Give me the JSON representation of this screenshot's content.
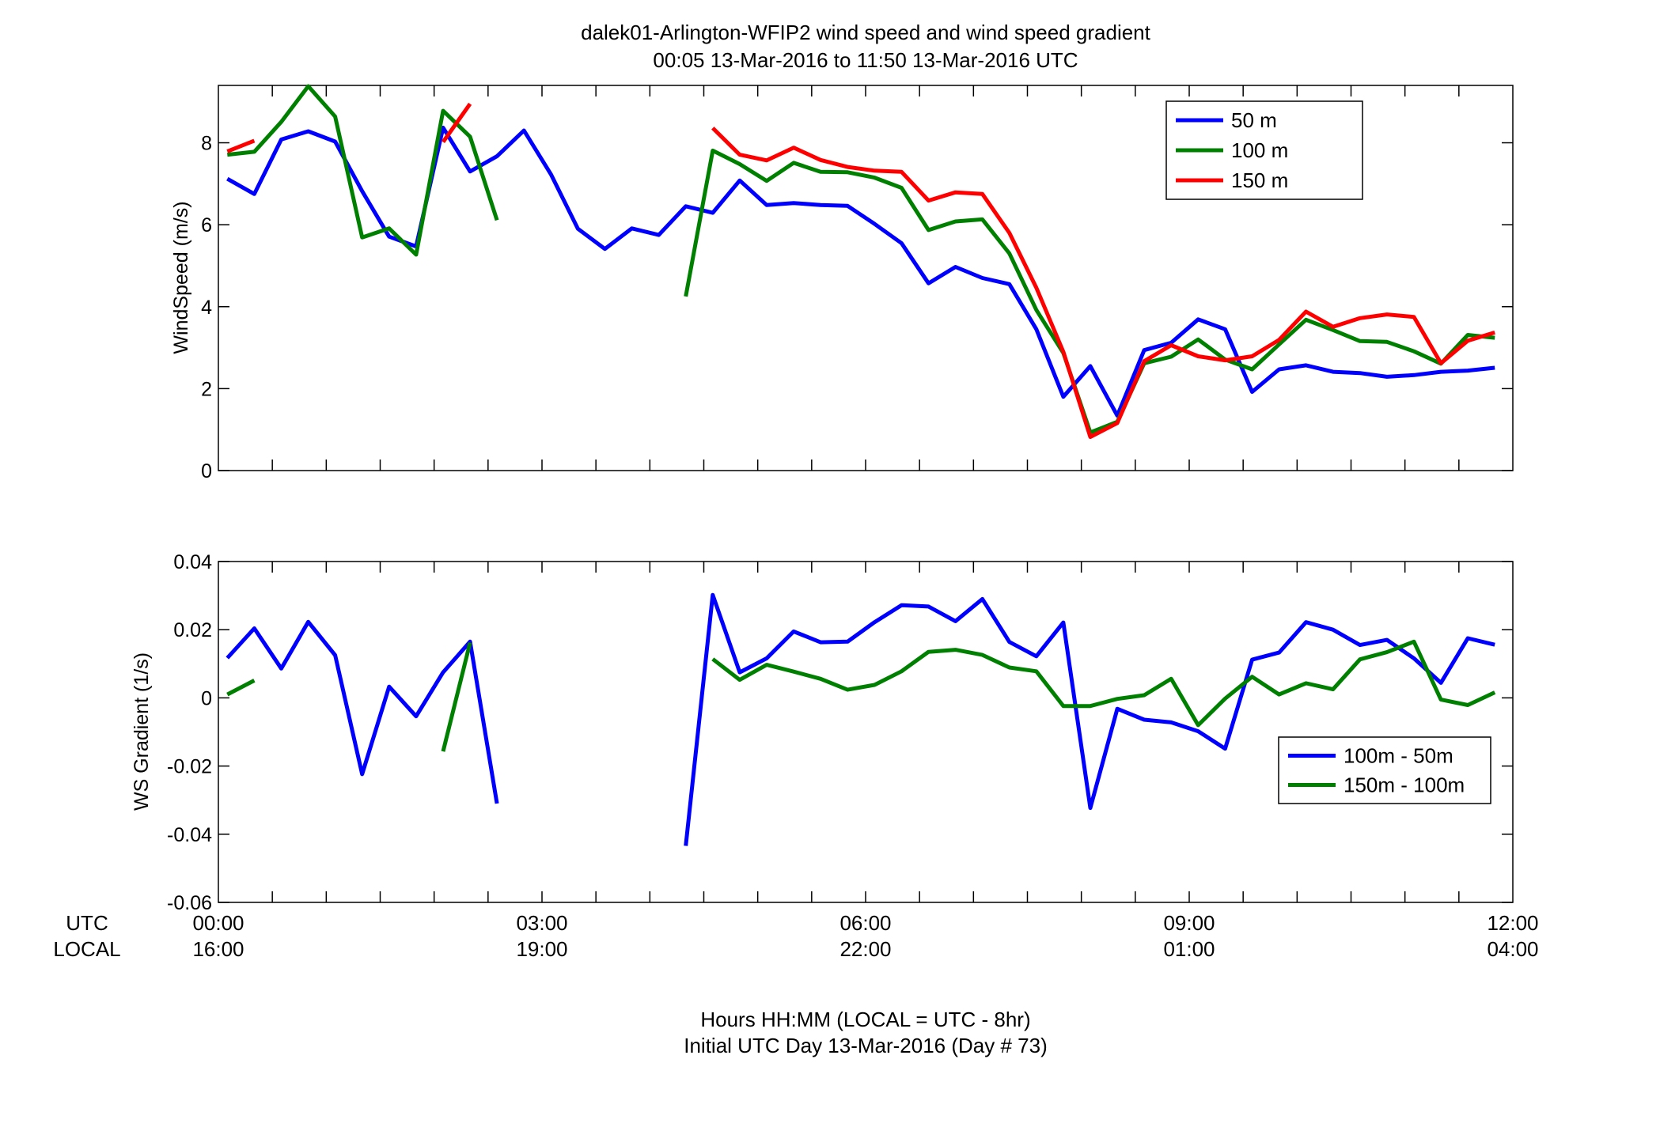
{
  "title_line1": "dalek01-Arlington-WFIP2  wind speed and wind speed gradient",
  "title_line2": "00:05 13-Mar-2016 to 11:50 13-Mar-2016  UTC",
  "row_label_utc": "UTC",
  "row_label_local": "LOCAL",
  "xlabel_line1": "Hours HH:MM  (LOCAL = UTC - 8hr)",
  "xlabel_line2": "Initial UTC Day 13-Mar-2016 (Day # 73)",
  "x_ticks": [
    {
      "hours": 0,
      "utc": "00:00",
      "local": "16:00"
    },
    {
      "hours": 3,
      "utc": "03:00",
      "local": "19:00"
    },
    {
      "hours": 6,
      "utc": "06:00",
      "local": "22:00"
    },
    {
      "hours": 9,
      "utc": "09:00",
      "local": "01:00"
    },
    {
      "hours": 12,
      "utc": "12:00",
      "local": "04:00"
    }
  ],
  "chart_data": [
    {
      "type": "line",
      "ylabel": "WindSpeed (m/s)",
      "xlim": [
        0,
        12
      ],
      "ylim": [
        0,
        9.4
      ],
      "y_ticks": [
        0,
        2,
        4,
        6,
        8
      ],
      "y_tick_labels": [
        "0",
        "2",
        "4",
        "6",
        "8"
      ],
      "legend_position": "top-right",
      "series": [
        {
          "name": "50 m",
          "color": "#0000ff",
          "segments": [
            [
              [
                0.083,
                7.12
              ],
              [
                0.333,
                6.75
              ],
              [
                0.583,
                8.08
              ],
              [
                0.833,
                8.28
              ],
              [
                1.083,
                8.03
              ],
              [
                1.333,
                6.82
              ],
              [
                1.583,
                5.71
              ],
              [
                1.833,
                5.47
              ],
              [
                2.083,
                8.37
              ],
              [
                2.333,
                7.3
              ],
              [
                2.583,
                7.67
              ],
              [
                2.833,
                8.3
              ],
              [
                3.083,
                7.23
              ],
              [
                3.333,
                5.9
              ],
              [
                3.583,
                5.41
              ],
              [
                3.833,
                5.91
              ],
              [
                4.083,
                5.75
              ],
              [
                4.333,
                6.45
              ],
              [
                4.583,
                6.29
              ],
              [
                4.833,
                7.08
              ],
              [
                5.083,
                6.48
              ],
              [
                5.333,
                6.53
              ],
              [
                5.583,
                6.48
              ],
              [
                5.833,
                6.46
              ],
              [
                6.083,
                6.02
              ],
              [
                6.333,
                5.55
              ],
              [
                6.583,
                4.57
              ],
              [
                6.833,
                4.97
              ],
              [
                7.083,
                4.7
              ],
              [
                7.333,
                4.55
              ],
              [
                7.583,
                3.45
              ],
              [
                7.833,
                1.8
              ],
              [
                8.083,
                2.55
              ],
              [
                8.333,
                1.34
              ],
              [
                8.583,
                2.94
              ],
              [
                8.833,
                3.12
              ],
              [
                9.083,
                3.69
              ],
              [
                9.333,
                3.45
              ],
              [
                9.583,
                1.92
              ],
              [
                9.833,
                2.47
              ],
              [
                10.083,
                2.57
              ],
              [
                10.333,
                2.41
              ],
              [
                10.583,
                2.38
              ],
              [
                10.833,
                2.29
              ],
              [
                11.083,
                2.33
              ],
              [
                11.333,
                2.41
              ],
              [
                11.583,
                2.44
              ],
              [
                11.833,
                2.51
              ]
            ]
          ]
        },
        {
          "name": "100 m",
          "color": "#008000",
          "segments": [
            [
              [
                0.083,
                7.71
              ],
              [
                0.333,
                7.78
              ],
              [
                0.583,
                8.51
              ],
              [
                0.833,
                9.38
              ],
              [
                1.083,
                8.64
              ],
              [
                1.333,
                5.69
              ],
              [
                1.583,
                5.91
              ],
              [
                1.833,
                5.27
              ],
              [
                2.083,
                8.78
              ],
              [
                2.333,
                8.15
              ],
              [
                2.583,
                6.11
              ]
            ],
            [
              [
                4.333,
                4.25
              ],
              [
                4.583,
                7.81
              ],
              [
                4.833,
                7.48
              ],
              [
                5.083,
                7.07
              ],
              [
                5.333,
                7.51
              ],
              [
                5.583,
                7.29
              ],
              [
                5.833,
                7.28
              ],
              [
                6.083,
                7.15
              ],
              [
                6.333,
                6.9
              ],
              [
                6.583,
                5.87
              ],
              [
                6.833,
                6.08
              ],
              [
                7.083,
                6.13
              ],
              [
                7.333,
                5.3
              ],
              [
                7.583,
                3.92
              ],
              [
                7.833,
                2.87
              ],
              [
                8.083,
                0.93
              ],
              [
                8.333,
                1.19
              ],
              [
                8.583,
                2.62
              ],
              [
                8.833,
                2.78
              ],
              [
                9.083,
                3.2
              ],
              [
                9.333,
                2.71
              ],
              [
                9.583,
                2.47
              ],
              [
                9.833,
                3.08
              ],
              [
                10.083,
                3.68
              ],
              [
                10.333,
                3.43
              ],
              [
                10.583,
                3.16
              ],
              [
                10.833,
                3.14
              ],
              [
                11.083,
                2.91
              ],
              [
                11.333,
                2.61
              ],
              [
                11.583,
                3.31
              ],
              [
                11.833,
                3.24
              ]
            ]
          ]
        },
        {
          "name": "150 m",
          "color": "#ff0000",
          "segments": [
            [
              [
                0.083,
                7.79
              ],
              [
                0.333,
                8.05
              ]
            ],
            [
              [
                2.083,
                8.02
              ],
              [
                2.333,
                8.95
              ]
            ],
            [
              [
                4.583,
                8.36
              ],
              [
                4.833,
                7.71
              ],
              [
                5.083,
                7.57
              ],
              [
                5.333,
                7.88
              ],
              [
                5.583,
                7.58
              ],
              [
                5.833,
                7.41
              ],
              [
                6.083,
                7.32
              ],
              [
                6.333,
                7.29
              ],
              [
                6.583,
                6.59
              ],
              [
                6.833,
                6.79
              ],
              [
                7.083,
                6.75
              ],
              [
                7.333,
                5.8
              ],
              [
                7.583,
                4.46
              ],
              [
                7.833,
                2.9
              ],
              [
                8.083,
                0.82
              ],
              [
                8.333,
                1.16
              ],
              [
                8.583,
                2.67
              ],
              [
                8.833,
                3.06
              ],
              [
                9.083,
                2.79
              ],
              [
                9.333,
                2.69
              ],
              [
                9.583,
                2.79
              ],
              [
                9.833,
                3.19
              ],
              [
                10.083,
                3.88
              ],
              [
                10.333,
                3.51
              ],
              [
                10.583,
                3.72
              ],
              [
                10.833,
                3.81
              ],
              [
                11.083,
                3.75
              ],
              [
                11.333,
                2.62
              ],
              [
                11.583,
                3.17
              ],
              [
                11.833,
                3.37
              ]
            ]
          ]
        }
      ]
    },
    {
      "type": "line",
      "ylabel": "WS Gradient (1/s)",
      "xlim": [
        0,
        12
      ],
      "ylim": [
        -0.06,
        0.04
      ],
      "y_ticks": [
        -0.06,
        -0.04,
        -0.02,
        0,
        0.02,
        0.04
      ],
      "y_tick_labels": [
        "-0.06",
        "-0.04",
        "-0.02",
        "0",
        "0.02",
        "0.04"
      ],
      "legend_position": "middle-right",
      "series": [
        {
          "name": "100m - 50m",
          "color": "#0000ff",
          "segments": [
            [
              [
                0.083,
                0.0117
              ],
              [
                0.333,
                0.0204
              ],
              [
                0.583,
                0.0086
              ],
              [
                0.833,
                0.0223
              ],
              [
                1.083,
                0.0125
              ],
              [
                1.333,
                -0.0224
              ],
              [
                1.583,
                0.0033
              ],
              [
                1.833,
                -0.0054
              ],
              [
                2.083,
                0.0075
              ],
              [
                2.333,
                0.0165
              ],
              [
                2.583,
                -0.031
              ]
            ],
            [
              [
                4.333,
                -0.0434
              ],
              [
                4.583,
                0.0302
              ],
              [
                4.833,
                0.0075
              ],
              [
                5.083,
                0.0116
              ],
              [
                5.333,
                0.0195
              ],
              [
                5.583,
                0.0163
              ],
              [
                5.833,
                0.0165
              ],
              [
                6.083,
                0.0222
              ],
              [
                6.333,
                0.0272
              ],
              [
                6.583,
                0.0268
              ],
              [
                6.833,
                0.0225
              ],
              [
                7.083,
                0.029
              ],
              [
                7.333,
                0.0164
              ],
              [
                7.583,
                0.0122
              ],
              [
                7.833,
                0.0221
              ],
              [
                8.083,
                -0.0323
              ],
              [
                8.333,
                -0.0032
              ],
              [
                8.583,
                -0.0064
              ],
              [
                8.833,
                -0.0072
              ],
              [
                9.083,
                -0.0098
              ],
              [
                9.333,
                -0.0149
              ],
              [
                9.583,
                0.0112
              ],
              [
                9.833,
                0.0133
              ],
              [
                10.083,
                0.0222
              ],
              [
                10.333,
                0.02
              ],
              [
                10.583,
                0.0155
              ],
              [
                10.833,
                0.017
              ],
              [
                11.083,
                0.0116
              ],
              [
                11.333,
                0.0044
              ],
              [
                11.583,
                0.0175
              ],
              [
                11.833,
                0.0156
              ]
            ]
          ]
        },
        {
          "name": "150m - 100m",
          "color": "#008000",
          "segments": [
            [
              [
                0.083,
                0.001
              ],
              [
                0.333,
                0.0051
              ]
            ],
            [
              [
                2.083,
                -0.0157
              ],
              [
                2.333,
                0.0162
              ]
            ],
            [
              [
                4.583,
                0.0114
              ],
              [
                4.833,
                0.0053
              ],
              [
                5.083,
                0.0097
              ],
              [
                5.333,
                0.0077
              ],
              [
                5.583,
                0.0056
              ],
              [
                5.833,
                0.0024
              ],
              [
                6.083,
                0.0038
              ],
              [
                6.333,
                0.0078
              ],
              [
                6.583,
                0.0135
              ],
              [
                6.833,
                0.0141
              ],
              [
                7.083,
                0.0126
              ],
              [
                7.333,
                0.0089
              ],
              [
                7.583,
                0.0078
              ],
              [
                7.833,
                -0.0024
              ],
              [
                8.083,
                -0.0024
              ],
              [
                8.333,
                -0.0003
              ],
              [
                8.583,
                0.0008
              ],
              [
                8.833,
                0.0056
              ],
              [
                9.083,
                -0.008
              ],
              [
                9.333,
                -0.0002
              ],
              [
                9.583,
                0.0062
              ],
              [
                9.833,
                0.001
              ],
              [
                10.083,
                0.0043
              ],
              [
                10.333,
                0.0025
              ],
              [
                10.583,
                0.0113
              ],
              [
                10.833,
                0.0134
              ],
              [
                11.083,
                0.0165
              ],
              [
                11.333,
                -0.0005
              ],
              [
                11.583,
                -0.0021
              ],
              [
                11.833,
                0.0016
              ]
            ]
          ]
        }
      ]
    }
  ]
}
